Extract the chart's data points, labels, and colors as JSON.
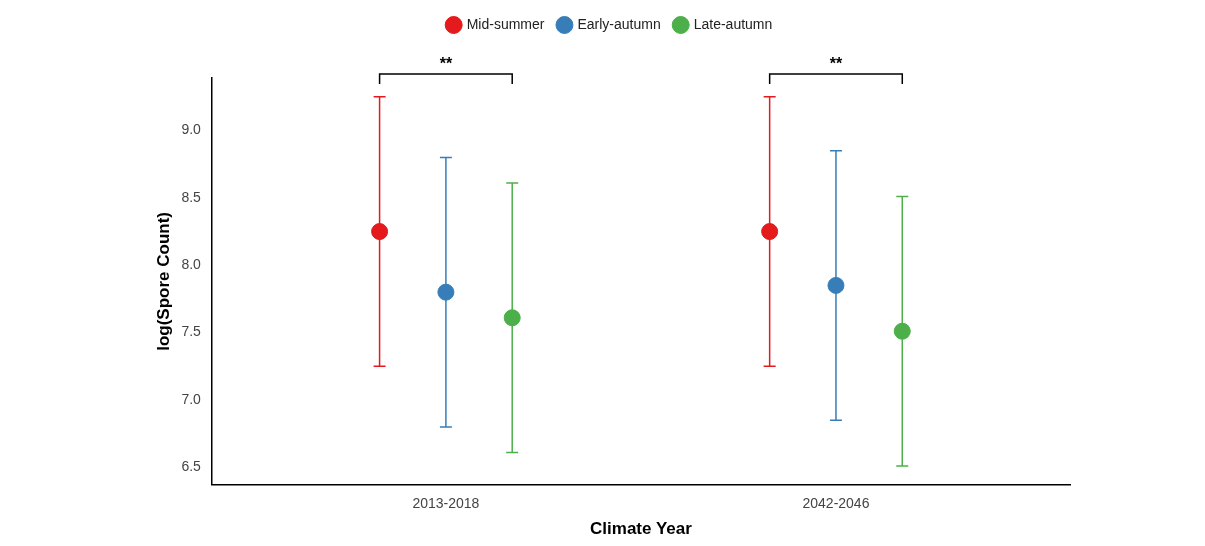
{
  "chart_data": {
    "type": "scatter",
    "xlabel": "Climate Year",
    "ylabel": "log(Spore Count)",
    "categories": [
      "2013-2018",
      "2042-2046"
    ],
    "series": [
      {
        "name": "Mid-summer",
        "color": "#e41a1c",
        "x": [
          "2013-2018",
          "2042-2046"
        ],
        "values": [
          8.25,
          8.25
        ],
        "errors": [
          [
            7.25,
            9.25
          ],
          [
            7.25,
            9.25
          ]
        ]
      },
      {
        "name": "Early-autumn",
        "color": "#377eb8",
        "x": [
          "2013-2018",
          "2042-2046"
        ],
        "values": [
          7.8,
          7.85
        ],
        "errors": [
          [
            6.8,
            8.8
          ],
          [
            6.85,
            8.85
          ]
        ]
      },
      {
        "name": "Late-autumn",
        "color": "#4daf4a",
        "x": [
          "2013-2018",
          "2042-2046"
        ],
        "values": [
          7.61,
          7.51
        ],
        "errors": [
          [
            6.61,
            8.61
          ],
          [
            6.51,
            8.51
          ]
        ]
      }
    ],
    "ylim": [
      6.37,
      9.39
    ],
    "yticks": [
      6.5,
      {
        "value": 7,
        "label": "7.0"
      },
      7.5,
      {
        "value": 8,
        "label": "8.0"
      },
      8.5,
      {
        "value": 9,
        "label": "9.0"
      }
    ],
    "grid": false,
    "legend": "top",
    "marker": "circle",
    "annotations": [
      "**",
      "**"
    ]
  }
}
